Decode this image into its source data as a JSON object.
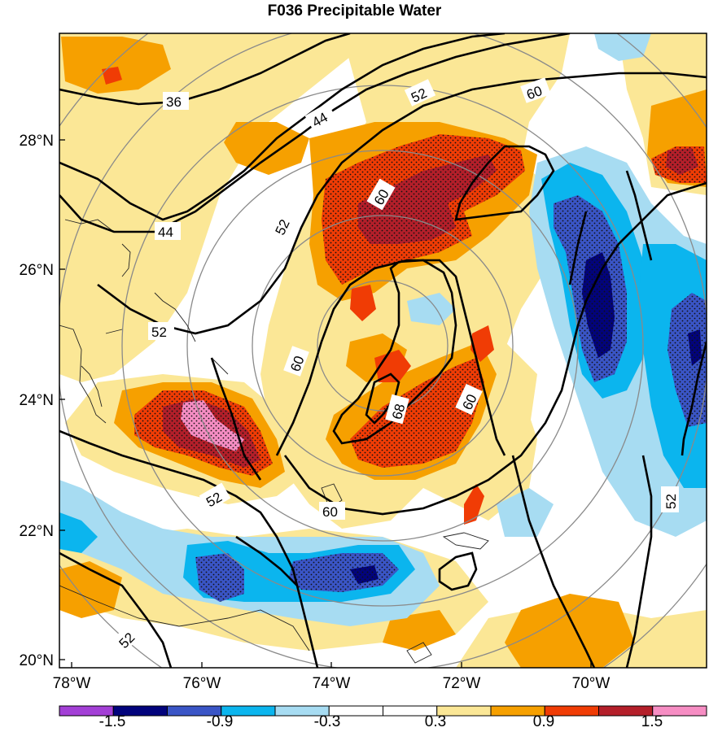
{
  "title": "F036 Precipitable Water",
  "lat_labels": [
    "28°N",
    "26°N",
    "24°N",
    "22°N",
    "20°N"
  ],
  "lon_labels": [
    "78°W",
    "76°W",
    "74°W",
    "72°W",
    "70°W"
  ],
  "contour_labels": [
    "36",
    "44",
    "44",
    "52",
    "52",
    "52",
    "52",
    "52",
    "52",
    "60",
    "60",
    "60",
    "60",
    "60",
    "68"
  ],
  "colorbar": {
    "labels": [
      "-1.5",
      "-0.9",
      "-0.3",
      "0.3",
      "0.9",
      "1.5"
    ],
    "colors": [
      "#a33fd6",
      "#02037c",
      "#3a55c6",
      "#0bb5ee",
      "#a7dcf2",
      "#ffffff",
      "#ffffff",
      "#fbe796",
      "#f6a000",
      "#f03c05",
      "#b41f2a",
      "#f68dc3"
    ]
  },
  "colors": {
    "neg_strong": "#02037c",
    "neg_med": "#3a55c6",
    "neg_mid": "#0bb5ee",
    "neg_weak": "#a7dcf2",
    "pos_weak": "#fbe796",
    "pos_med": "#f6a000",
    "pos_mid": "#f03c05",
    "pos_strong": "#b41f2a",
    "pos_max": "#f68dc3"
  },
  "icons": [
    "range-ring-icon",
    "stipple-pattern-icon",
    "coastline-icon"
  ]
}
